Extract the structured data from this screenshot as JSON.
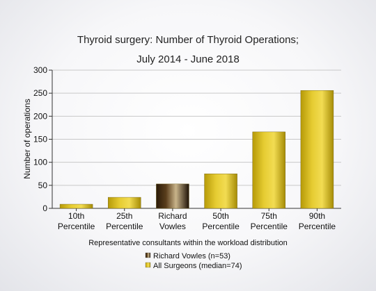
{
  "chart_data": {
    "type": "bar",
    "title": [
      "Thyroid surgery: Number of Thyroid Operations;",
      "July 2014 - June 2018"
    ],
    "xlabel": "Representative consultants within the workload distribution",
    "ylabel": "Number of operations",
    "ylim": [
      0,
      300
    ],
    "yticks": [
      "0",
      "50",
      "100",
      "150",
      "200",
      "250",
      "300"
    ],
    "grid": true,
    "categories": [
      [
        "10th",
        "Percentile"
      ],
      [
        "25th",
        "Percentile"
      ],
      [
        "Richard",
        "Vowles"
      ],
      [
        "50th",
        "Percentile"
      ],
      [
        "75th",
        "Percentile"
      ],
      [
        "90th",
        "Percentile"
      ]
    ],
    "values": [
      9,
      24,
      53,
      75,
      166,
      256
    ],
    "bar_series": [
      "all",
      "all",
      "rv",
      "all",
      "all",
      "all"
    ],
    "legend_position": "bottom-center",
    "legend": [
      {
        "key": "rv",
        "label": "Richard Vowles (n=53)",
        "color": "#3a2a14"
      },
      {
        "key": "all",
        "label": "All Surgeons (median=74)",
        "color": "#d4b81a"
      }
    ]
  }
}
